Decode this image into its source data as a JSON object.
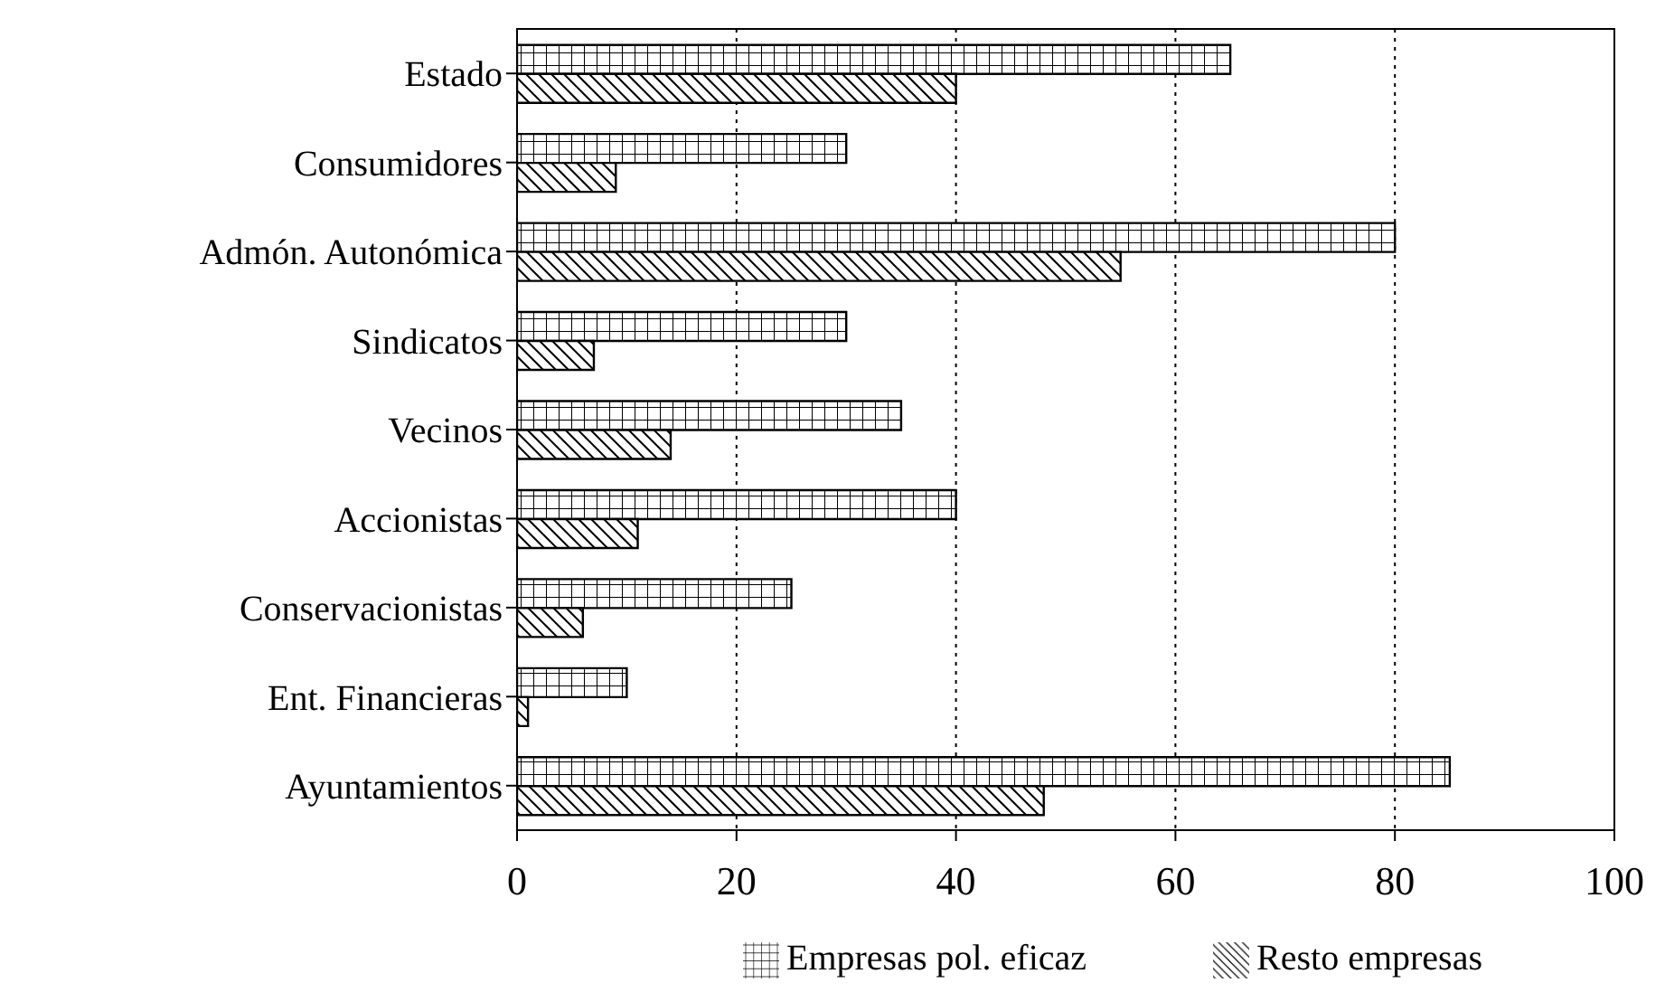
{
  "chart_data": {
    "type": "bar",
    "orientation": "horizontal",
    "categories": [
      "Estado",
      "Consumidores",
      "Admón. Autonómica",
      "Sindicatos",
      "Vecinos",
      "Accionistas",
      "Conservacionistas",
      "Ent. Financieras",
      "Ayuntamientos"
    ],
    "series": [
      {
        "name": "Empresas pol.  eficaz",
        "color": "#000000",
        "values": [
          65,
          30,
          80,
          30,
          35,
          40,
          25,
          10,
          85
        ]
      },
      {
        "name": "Resto empresas",
        "color": "#000000",
        "values": [
          40,
          9,
          55,
          7,
          14,
          11,
          6,
          1,
          48
        ]
      }
    ],
    "xlim": [
      0,
      100
    ],
    "xticks": [
      0,
      20,
      40,
      60,
      80,
      100
    ],
    "grid": "x",
    "legend": "bottom"
  }
}
